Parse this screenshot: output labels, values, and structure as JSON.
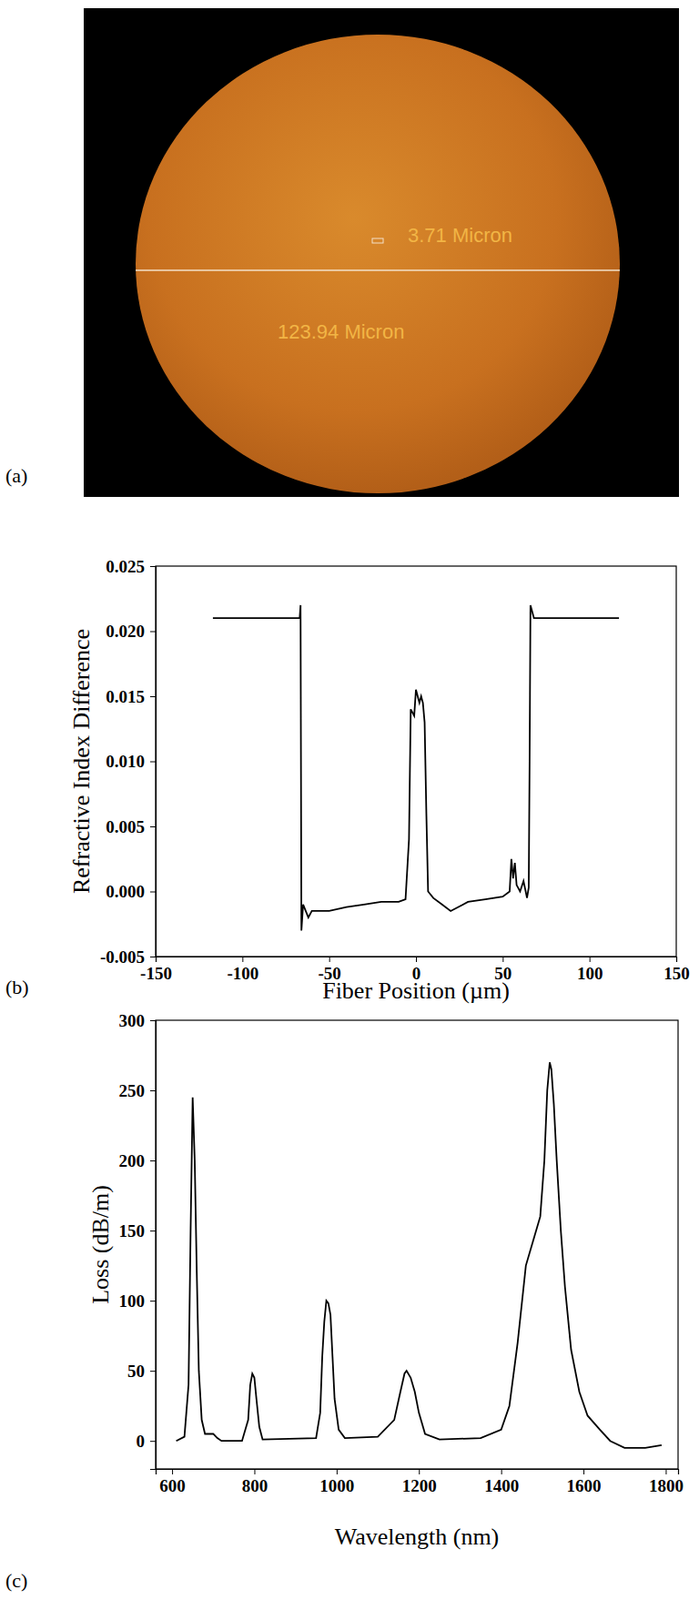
{
  "image_panel": {
    "panel_label": "(a)",
    "scale_bar_label": "3.71 Micron",
    "diameter_label": "123.94 Micron"
  },
  "chart_data": [
    {
      "type": "line",
      "panel_label": "(b)",
      "x_label": "Fiber Position (µm)",
      "y_label": "Refractive Index Difference",
      "xlim": [
        -150,
        150
      ],
      "xticks": [
        -150,
        -100,
        -50,
        0,
        50,
        100,
        150
      ],
      "ylim": [
        -0.005,
        0.025
      ],
      "yticks": [
        -0.005,
        {
          "value": 0,
          "label": "0.000"
        },
        0.005,
        {
          "value": 0.01,
          "label": "0.010"
        },
        0.015,
        {
          "value": 0.02,
          "label": "0.020"
        },
        0.025
      ],
      "color": "#000000",
      "grid": false,
      "x": [
        -117,
        -100,
        -80,
        -67,
        -66.5,
        -66,
        -65,
        -62,
        -60,
        -50,
        -40,
        -30,
        -20,
        -10,
        -6,
        -4,
        -3,
        -1,
        0,
        1,
        2,
        3,
        4,
        5,
        6,
        7,
        10,
        15,
        20,
        30,
        40,
        50,
        54,
        55,
        56,
        57,
        58,
        60,
        62,
        64,
        65,
        65.5,
        66,
        68,
        80,
        100,
        117
      ],
      "values": [
        0.021,
        0.021,
        0.021,
        0.021,
        0.022,
        -0.003,
        -0.001,
        -0.002,
        -0.0015,
        -0.0015,
        -0.0012,
        -0.001,
        -0.0008,
        -0.0008,
        -0.0006,
        0.004,
        0.014,
        0.0135,
        0.0155,
        0.015,
        0.0145,
        0.015,
        0.0145,
        0.013,
        0.006,
        0.0,
        -0.0005,
        -0.001,
        -0.0015,
        -0.0008,
        -0.0006,
        -0.0004,
        0.0,
        0.0025,
        0.001,
        0.0022,
        0.0005,
        0.0,
        0.0008,
        -0.0005,
        0.0003,
        0.01,
        0.022,
        0.021,
        0.021,
        0.021,
        0.021
      ]
    },
    {
      "type": "line",
      "panel_label": "(c)",
      "x_label": "Wavelength (nm)",
      "y_label": "Loss (dB/m)",
      "xlim": [
        560,
        1830
      ],
      "xticks": [
        600,
        800,
        1000,
        1200,
        1400,
        1600,
        1800
      ],
      "ylim": [
        -20,
        300
      ],
      "yticks": [
        0,
        50,
        100,
        150,
        200,
        250,
        300
      ],
      "color": "#000000",
      "grid": false,
      "x": [
        610,
        630,
        640,
        645,
        650,
        655,
        660,
        665,
        672,
        680,
        700,
        710,
        720,
        770,
        785,
        790,
        795,
        800,
        805,
        812,
        820,
        950,
        960,
        965,
        970,
        975,
        980,
        985,
        990,
        995,
        1005,
        1020,
        1100,
        1140,
        1155,
        1165,
        1170,
        1180,
        1190,
        1200,
        1215,
        1250,
        1350,
        1400,
        1420,
        1440,
        1460,
        1480,
        1495,
        1505,
        1512,
        1518,
        1522,
        1528,
        1535,
        1545,
        1555,
        1570,
        1590,
        1610,
        1640,
        1665,
        1700,
        1750,
        1790
      ],
      "values": [
        0,
        3,
        40,
        150,
        245,
        200,
        120,
        50,
        15,
        5,
        5,
        2,
        0,
        0,
        15,
        40,
        48,
        45,
        30,
        10,
        1,
        2,
        20,
        60,
        85,
        100,
        98,
        90,
        60,
        30,
        8,
        2,
        3,
        15,
        35,
        48,
        50,
        45,
        35,
        20,
        5,
        1,
        2,
        8,
        25,
        70,
        125,
        145,
        160,
        200,
        250,
        270,
        265,
        240,
        200,
        150,
        110,
        65,
        35,
        18,
        8,
        0,
        -5,
        -5,
        -3
      ]
    }
  ]
}
